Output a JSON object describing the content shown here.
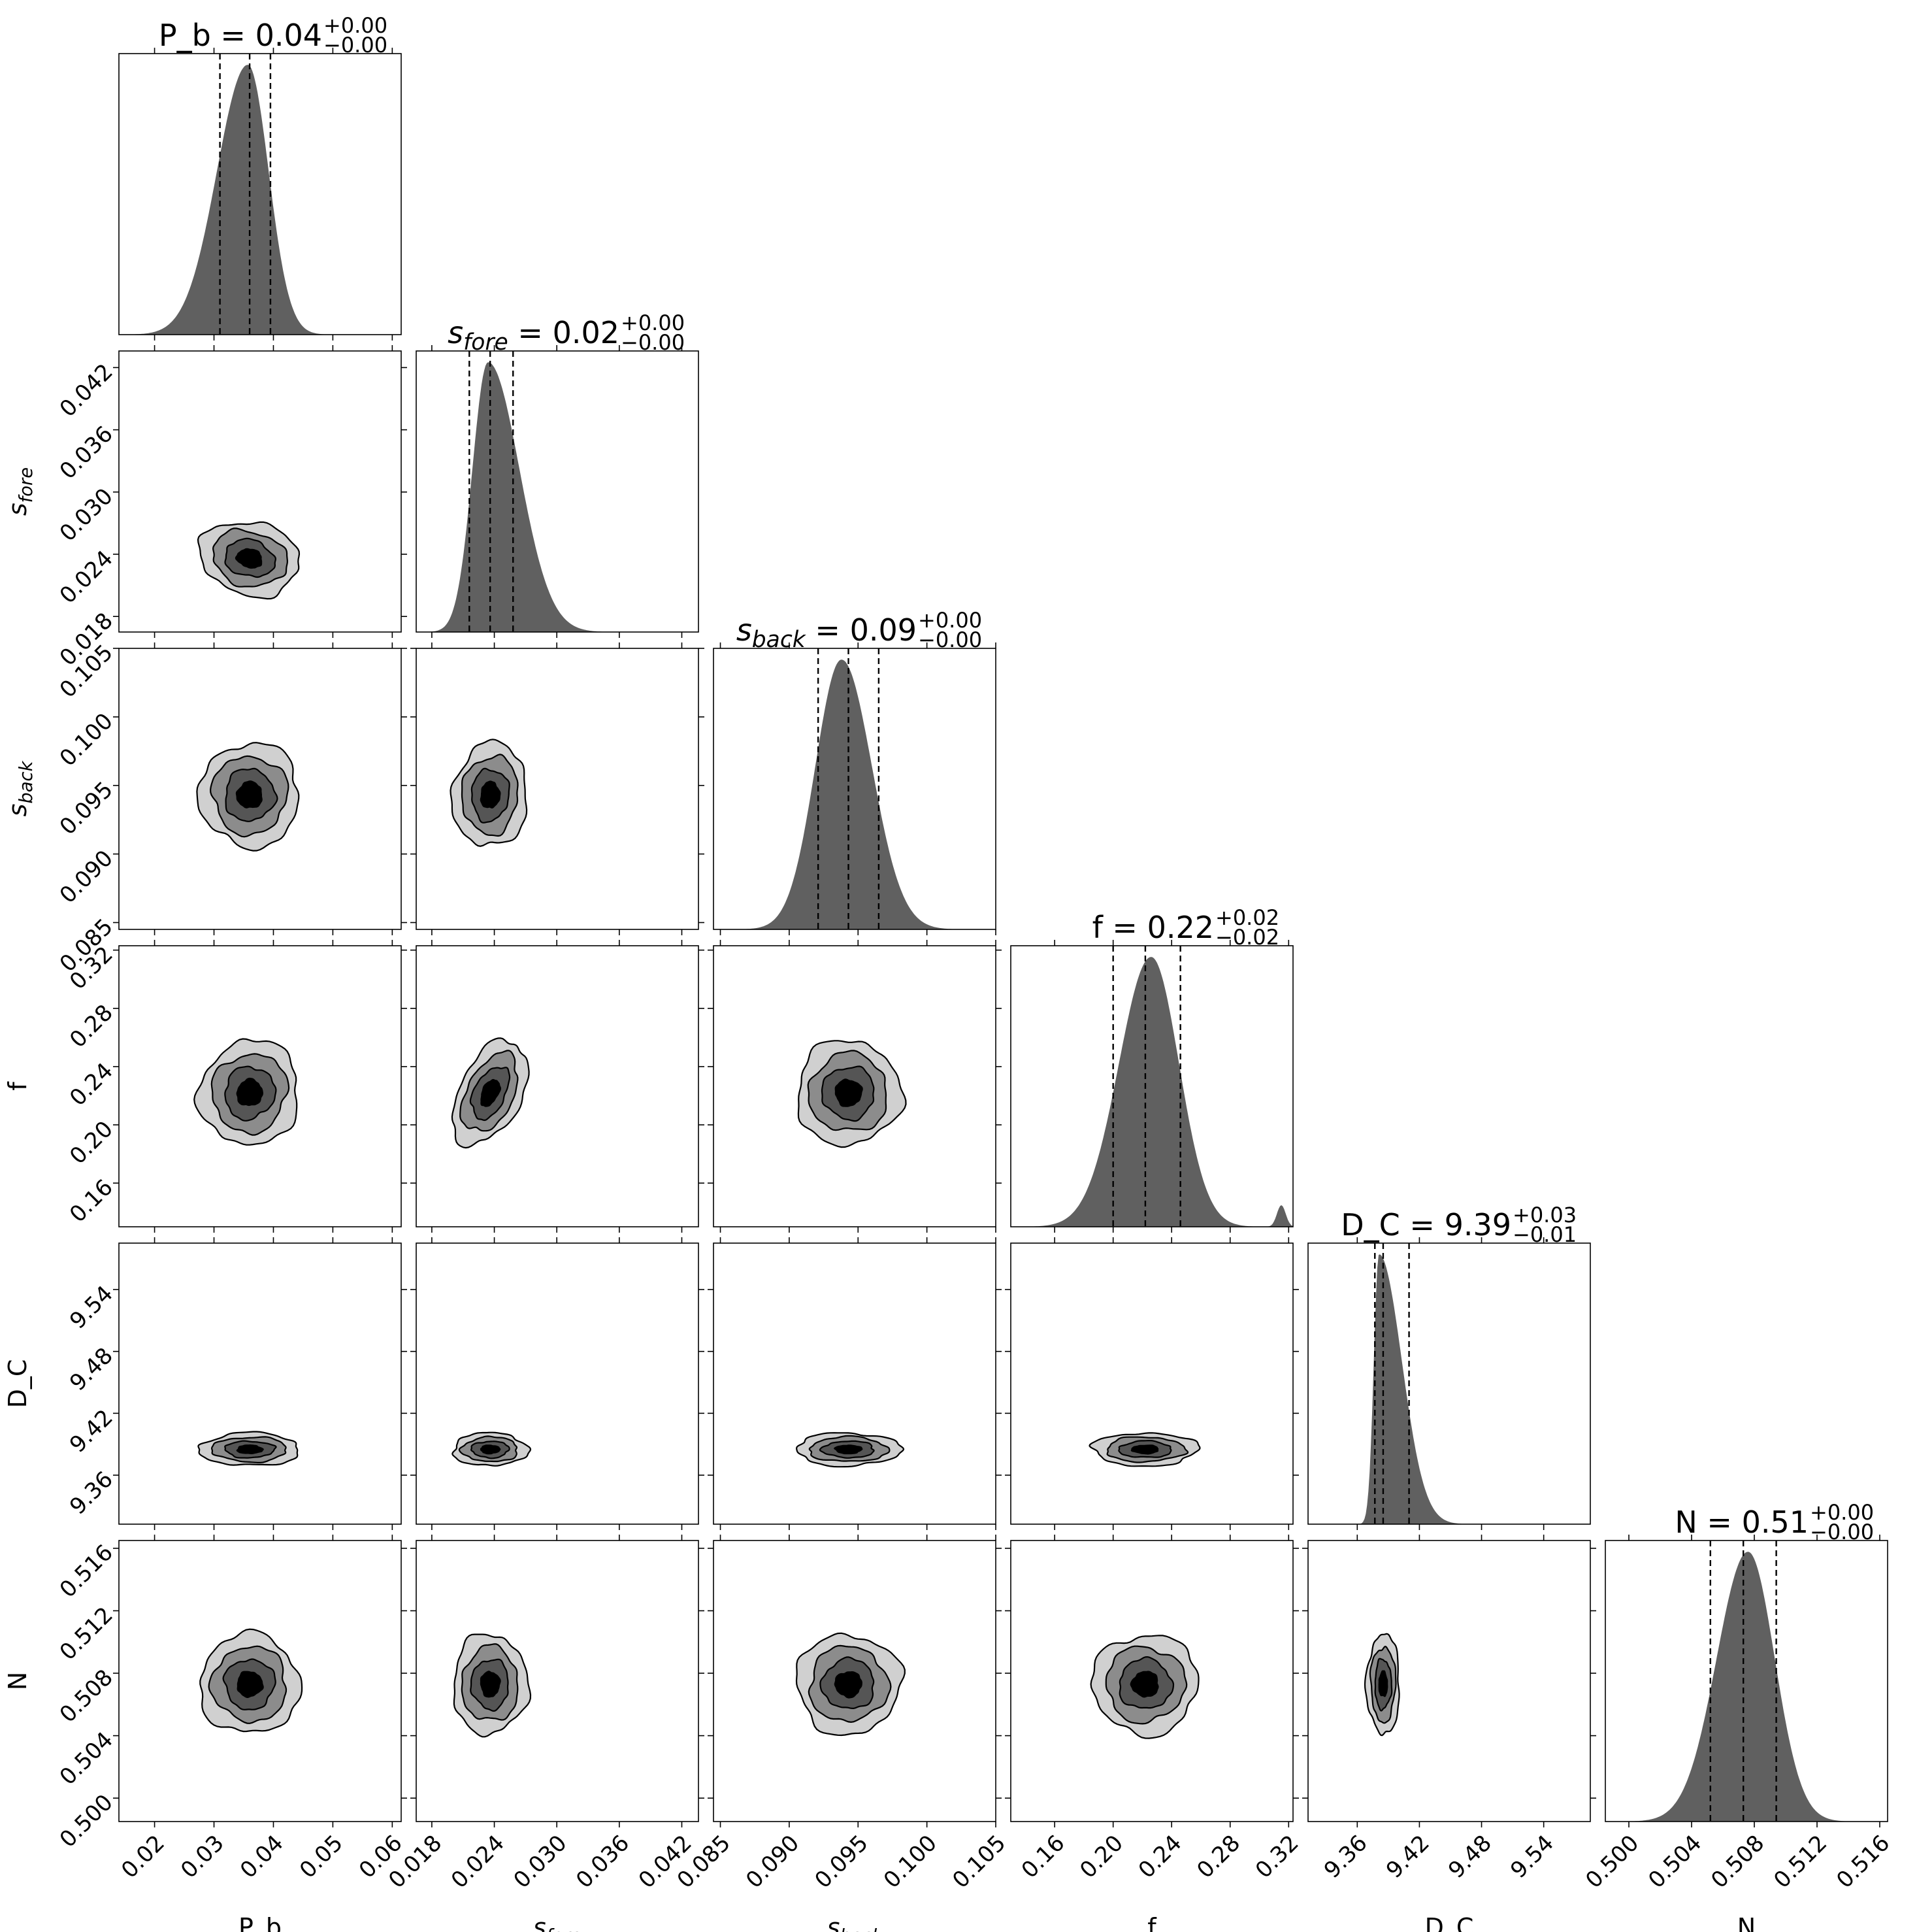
{
  "chart_data": {
    "type": "corner",
    "parameters": [
      {
        "key": "P_b",
        "axis_label": "P_b",
        "label_sub": "",
        "title_value": "0.04",
        "title_plus": "+0.00",
        "title_minus": "−0.00",
        "ticks": [
          "0.02",
          "0.03",
          "0.04",
          "0.05",
          "0.06"
        ],
        "tick_values": [
          0.02,
          0.03,
          0.04,
          0.05,
          0.06
        ],
        "range": [
          0.014,
          0.0615
        ],
        "median": 0.036,
        "quantiles": [
          0.031,
          0.036,
          0.0395
        ],
        "std": 0.0042,
        "hist_peak": 0.0357,
        "sigma_left": 0.0052,
        "sigma_right": 0.0035,
        "secondary_peak": null
      },
      {
        "key": "s_fore",
        "axis_label": "s",
        "label_sub": "fore",
        "title_value": "0.02",
        "title_plus": "+0.00",
        "title_minus": "−0.00",
        "ticks": [
          "0.018",
          "0.024",
          "0.030",
          "0.036",
          "0.042"
        ],
        "tick_values": [
          0.018,
          0.024,
          0.03,
          0.036,
          0.042
        ],
        "range": [
          0.0165,
          0.0436
        ],
        "median": 0.0236,
        "quantiles": [
          0.0216,
          0.0236,
          0.0258
        ],
        "std": 0.0018,
        "hist_peak": 0.0234,
        "sigma_left": 0.0015,
        "sigma_right": 0.003,
        "secondary_peak": null
      },
      {
        "key": "s_back",
        "axis_label": "s",
        "label_sub": "back",
        "title_value": "0.09",
        "title_plus": "+0.00",
        "title_minus": "−0.00",
        "ticks": [
          "0.085",
          "0.090",
          "0.095",
          "0.100",
          "0.105"
        ],
        "tick_values": [
          0.085,
          0.09,
          0.095,
          0.1,
          0.105
        ],
        "range": [
          0.0845,
          0.105
        ],
        "median": 0.0943,
        "quantiles": [
          0.0921,
          0.0943,
          0.0965
        ],
        "std": 0.0019,
        "hist_peak": 0.0938,
        "sigma_left": 0.0019,
        "sigma_right": 0.0022,
        "secondary_peak": null
      },
      {
        "key": "f",
        "axis_label": "f",
        "label_sub": "",
        "title_value": "0.22",
        "title_plus": "+0.02",
        "title_minus": "−0.02",
        "ticks": [
          "0.16",
          "0.20",
          "0.24",
          "0.28",
          "0.32"
        ],
        "tick_values": [
          0.16,
          0.2,
          0.24,
          0.28,
          0.32
        ],
        "range": [
          0.13,
          0.323
        ],
        "median": 0.222,
        "quantiles": [
          0.2,
          0.222,
          0.246
        ],
        "std": 0.018,
        "hist_peak": 0.226,
        "sigma_left": 0.022,
        "sigma_right": 0.019,
        "secondary_peak": [
          0.315,
          0.08,
          0.003
        ]
      },
      {
        "key": "D_C",
        "axis_label": "D_C",
        "label_sub": "",
        "title_value": "9.39",
        "title_plus": "+0.03",
        "title_minus": "−0.01",
        "ticks": [
          "9.36",
          "9.42",
          "9.48",
          "9.54"
        ],
        "tick_values": [
          9.36,
          9.42,
          9.48,
          9.54
        ],
        "range": [
          9.3125,
          9.585
        ],
        "median": 9.385,
        "quantiles": [
          9.377,
          9.385,
          9.41
        ],
        "std": 0.008,
        "hist_peak": 9.381,
        "sigma_left": 0.005,
        "sigma_right": 0.022,
        "secondary_peak": null
      },
      {
        "key": "N",
        "axis_label": "N",
        "label_sub": "",
        "title_value": "0.51",
        "title_plus": "+0.00",
        "title_minus": "−0.00",
        "ticks": [
          "0.500",
          "0.504",
          "0.508",
          "0.512",
          "0.516"
        ],
        "tick_values": [
          0.5,
          0.504,
          0.508,
          0.512,
          0.516
        ],
        "range": [
          0.4985,
          0.5165
        ],
        "median": 0.5073,
        "quantiles": [
          0.5052,
          0.5073,
          0.5094
        ],
        "std": 0.0016,
        "hist_peak": 0.5076,
        "sigma_left": 0.002,
        "sigma_right": 0.0017,
        "secondary_peak": null
      }
    ],
    "correlations": [
      {
        "row": 1,
        "col": 0,
        "rho": -0.15
      },
      {
        "row": 2,
        "col": 0,
        "rho": 0.0
      },
      {
        "row": 2,
        "col": 1,
        "rho": 0.05
      },
      {
        "row": 3,
        "col": 0,
        "rho": 0.05
      },
      {
        "row": 3,
        "col": 1,
        "rho": 0.45
      },
      {
        "row": 3,
        "col": 2,
        "rho": 0.0
      },
      {
        "row": 4,
        "col": 0,
        "rho": 0.0
      },
      {
        "row": 4,
        "col": 1,
        "rho": 0.0
      },
      {
        "row": 4,
        "col": 2,
        "rho": 0.0
      },
      {
        "row": 4,
        "col": 3,
        "rho": 0.0
      },
      {
        "row": 5,
        "col": 0,
        "rho": 0.0
      },
      {
        "row": 5,
        "col": 1,
        "rho": 0.0
      },
      {
        "row": 5,
        "col": 2,
        "rho": 0.0
      },
      {
        "row": 5,
        "col": 3,
        "rho": 0.0
      },
      {
        "row": 5,
        "col": 4,
        "rho": 0.0
      }
    ],
    "contour_levels_sigma": [
      0.5,
      1.0,
      1.5,
      2.0
    ],
    "contour_fills": [
      "#000000",
      "#555555",
      "#8c8c8c",
      "#d0d0d0"
    ],
    "histogram_fill": "#606060",
    "quantile_line_style": "dashed",
    "grid": false
  }
}
